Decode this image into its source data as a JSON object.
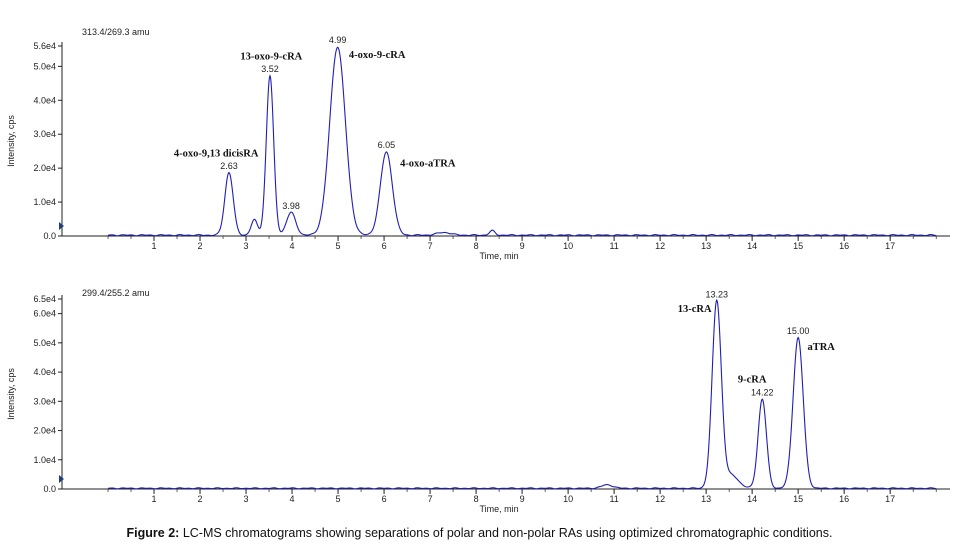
{
  "figure": {
    "caption_label": "Figure 2:",
    "caption_text": " LC-MS chromatograms showing separations of polar and non-polar RAs using optimized chromatographic conditions."
  },
  "colors": {
    "trace": "#1f1fb8",
    "axis": "#222222",
    "text": "#222222"
  },
  "chart_data": [
    {
      "type": "line",
      "header": "313.4/269.3 amu",
      "xlabel": "Time, min",
      "ylabel": "Intensity, cps",
      "xlim": [
        -1.0,
        18.3
      ],
      "ylim": [
        0,
        56000
      ],
      "x_ticks": [
        1,
        2,
        3,
        4,
        5,
        6,
        7,
        8,
        9,
        10,
        11,
        12,
        13,
        14,
        15,
        16,
        17
      ],
      "y_ticks": [
        {
          "v": 0,
          "label": "0.0"
        },
        {
          "v": 10000,
          "label": "1.0e4"
        },
        {
          "v": 20000,
          "label": "2.0e4"
        },
        {
          "v": 30000,
          "label": "3.0e4"
        },
        {
          "v": 40000,
          "label": "4.0e4"
        },
        {
          "v": 50000,
          "label": "5.0e4"
        },
        {
          "v": 56000,
          "label": "5.6e4"
        }
      ],
      "baseline": 250,
      "series": [
        {
          "peaks": [
            {
              "rt": 2.63,
              "height": 18500,
              "width": 0.09
            },
            {
              "rt": 3.18,
              "height": 4500,
              "width": 0.07
            },
            {
              "rt": 3.52,
              "height": 47000,
              "width": 0.08
            },
            {
              "rt": 3.98,
              "height": 6700,
              "width": 0.1
            },
            {
              "rt": 4.99,
              "height": 55500,
              "width": 0.17
            },
            {
              "rt": 6.05,
              "height": 24500,
              "width": 0.13
            },
            {
              "rt": 7.3,
              "height": 800,
              "width": 0.15
            },
            {
              "rt": 8.35,
              "height": 1300,
              "width": 0.06
            }
          ]
        }
      ],
      "annotations": [
        {
          "rt_label": "2.63",
          "x": 2.63,
          "y": 19200,
          "compound": "4-oxo-9,13 dicisRA",
          "cx": 2.35,
          "cy": 23500
        },
        {
          "rt_label": "3.52",
          "x": 3.52,
          "y": 47700,
          "compound": "13-oxo-9-cRA",
          "cx": 3.55,
          "cy": 52000
        },
        {
          "rt_label": "3.98",
          "x": 3.98,
          "y": 7400,
          "compound": "",
          "cx": 0,
          "cy": 0
        },
        {
          "rt_label": "4.99",
          "x": 4.99,
          "y": 56300,
          "compound": "4-oxo-9-cRA",
          "cx": 5.85,
          "cy": 52500
        },
        {
          "rt_label": "6.05",
          "x": 6.05,
          "y": 25300,
          "compound": "4-oxo-aTRA",
          "cx": 6.95,
          "cy": 20500
        }
      ]
    },
    {
      "type": "line",
      "header": "299.4/255.2 amu",
      "xlabel": "Time, min",
      "ylabel": "Intensity, cps",
      "xlim": [
        -1.0,
        18.3
      ],
      "ylim": [
        0,
        65000
      ],
      "x_ticks": [
        1,
        2,
        3,
        4,
        5,
        6,
        7,
        8,
        9,
        10,
        11,
        12,
        13,
        14,
        15,
        16,
        17
      ],
      "y_ticks": [
        {
          "v": 0,
          "label": "0.0"
        },
        {
          "v": 10000,
          "label": "1.0e4"
        },
        {
          "v": 20000,
          "label": "2.0e4"
        },
        {
          "v": 30000,
          "label": "3.0e4"
        },
        {
          "v": 40000,
          "label": "4.0e4"
        },
        {
          "v": 50000,
          "label": "5.0e4"
        },
        {
          "v": 60000,
          "label": "6.0e4"
        },
        {
          "v": 65000,
          "label": "6.5e4"
        }
      ],
      "baseline": 250,
      "series": [
        {
          "peaks": [
            {
              "rt": 10.85,
              "height": 1200,
              "width": 0.12
            },
            {
              "rt": 13.23,
              "height": 64000,
              "width": 0.1
            },
            {
              "rt": 13.55,
              "height": 4500,
              "width": 0.15
            },
            {
              "rt": 14.22,
              "height": 30500,
              "width": 0.09
            },
            {
              "rt": 15.0,
              "height": 51500,
              "width": 0.11
            }
          ]
        }
      ],
      "annotations": [
        {
          "rt_label": "13.23",
          "x": 13.23,
          "y": 64800,
          "compound": "13-cRA",
          "cx": 12.75,
          "cy": 60500
        },
        {
          "rt_label": "14.22",
          "x": 14.22,
          "y": 31300,
          "compound": "9-cRA",
          "cx": 14.0,
          "cy": 36500
        },
        {
          "rt_label": "15.00",
          "x": 15.0,
          "y": 52300,
          "compound": "aTRA",
          "cx": 15.5,
          "cy": 47500
        }
      ]
    }
  ]
}
